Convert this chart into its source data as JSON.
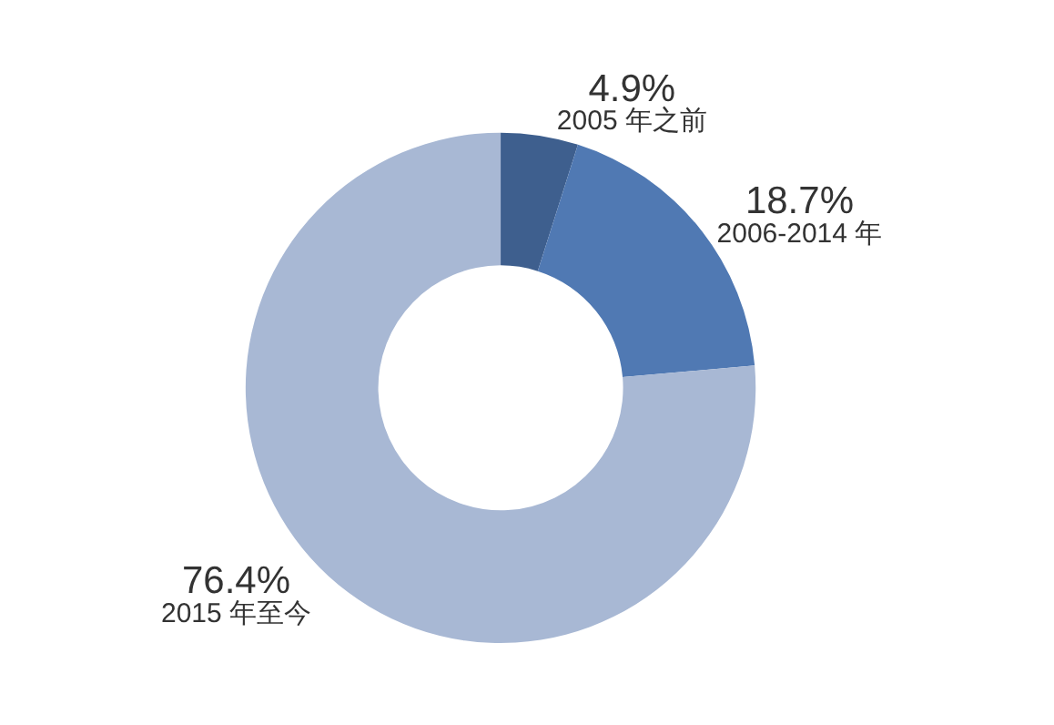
{
  "chart_data": {
    "type": "donut",
    "categories": [
      "2005 年之前",
      "2006-2014 年",
      "2015 年至今"
    ],
    "values": [
      4.9,
      18.7,
      76.4
    ],
    "colors": [
      "#3e5f8e",
      "#5079b3",
      "#a8b8d4"
    ],
    "value_labels": [
      "4.9%",
      "18.7%",
      "76.4%"
    ],
    "legend": false
  }
}
